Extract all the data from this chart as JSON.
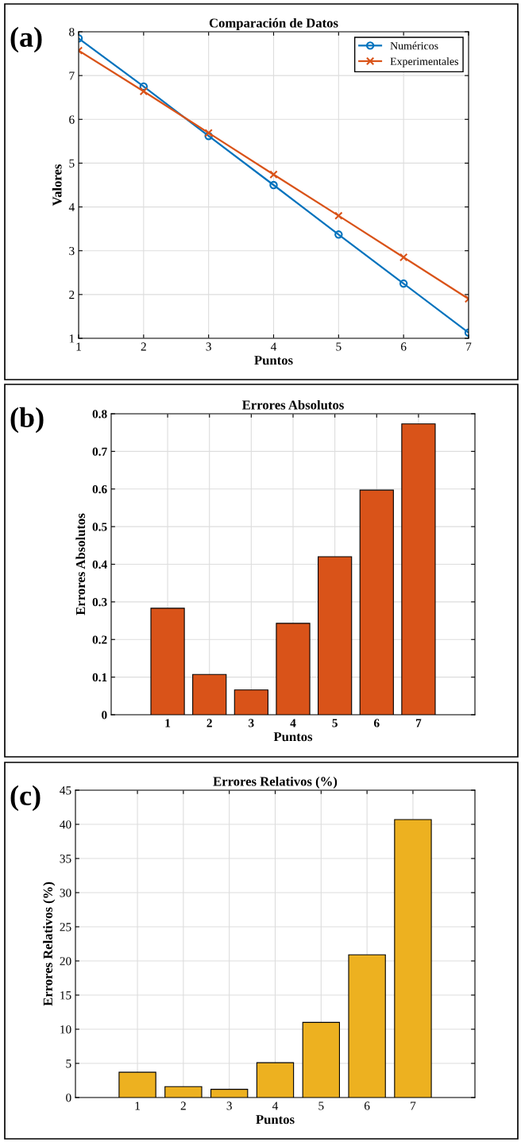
{
  "chart_data": [
    {
      "type": "line",
      "title": "Comparación de Datos",
      "xlabel": "Puntos",
      "ylabel": "Valores",
      "annotations": [
        "(a)"
      ],
      "x": [
        1,
        2,
        3,
        4,
        5,
        6,
        7
      ],
      "xlim": [
        1,
        7
      ],
      "xticks": [
        1,
        2,
        3,
        4,
        5,
        6,
        7
      ],
      "ylim": [
        1,
        8
      ],
      "yticks": [
        1,
        2,
        3,
        4,
        5,
        6,
        7,
        8
      ],
      "grid": true,
      "legend": "top right",
      "series": [
        {
          "name": "Numéricos",
          "color": "#0072bd",
          "marker": "circle",
          "values": [
            7.85,
            6.75,
            5.62,
            4.5,
            3.37,
            2.25,
            1.13
          ]
        },
        {
          "name": "Experimentales",
          "color": "#d95319",
          "marker": "cross",
          "values": [
            7.57,
            6.64,
            5.69,
            4.74,
            3.8,
            2.85,
            1.9
          ]
        }
      ]
    },
    {
      "type": "bar",
      "title": "Errores Absolutos",
      "xlabel": "Puntos",
      "ylabel": "Errores Absolutos",
      "annotations": [
        "(b)"
      ],
      "categories": [
        "1",
        "2",
        "3",
        "4",
        "5",
        "6",
        "7"
      ],
      "ylim": [
        0,
        0.8
      ],
      "yticks": [
        0,
        0.1,
        0.2,
        0.3,
        0.4,
        0.5,
        0.6,
        0.7,
        0.8
      ],
      "grid": true,
      "color": "#d95319",
      "values": [
        0.283,
        0.107,
        0.066,
        0.243,
        0.42,
        0.597,
        0.773
      ]
    },
    {
      "type": "bar",
      "title": "Errores Relativos (%)",
      "xlabel": "Puntos",
      "ylabel": "Errores Relativos (%)",
      "annotations": [
        "(c)"
      ],
      "categories": [
        "1",
        "2",
        "3",
        "4",
        "5",
        "6",
        "7"
      ],
      "ylim": [
        0,
        45
      ],
      "yticks": [
        0,
        5,
        10,
        15,
        20,
        25,
        30,
        35,
        40,
        45
      ],
      "grid": true,
      "color": "#edb120",
      "values": [
        3.7,
        1.6,
        1.2,
        5.1,
        11.0,
        20.9,
        40.7
      ]
    }
  ]
}
